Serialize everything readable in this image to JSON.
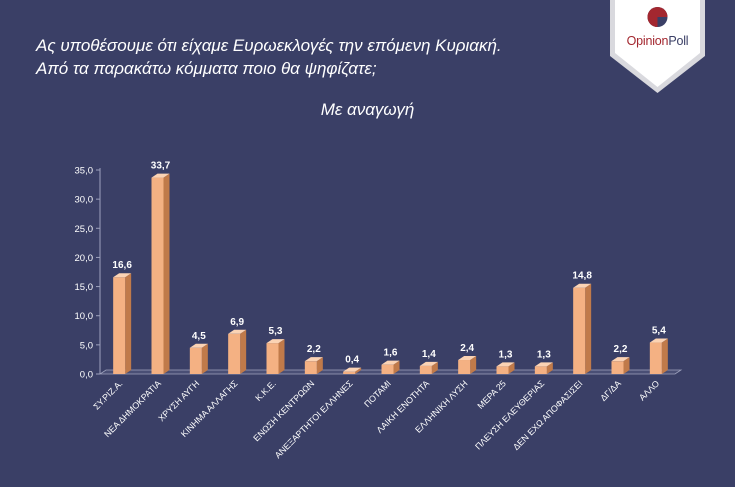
{
  "title_lines": [
    "Ας υποθέσουμε ότι είχαμε Ευρωεκλογές την επόμενη Κυριακή.",
    "Από τα παρακάτω κόμματα ποιο θα ψηφίζατε;"
  ],
  "subtitle": "Με αναγωγή",
  "logo": {
    "part1": "Opinion",
    "part2": "Poll"
  },
  "colors": {
    "background": "#3a3f66",
    "bar_front": "#f4b183",
    "bar_top": "#fbd3b4",
    "bar_side": "#c07a4a",
    "logo_red": "#a3272f",
    "logo_navy": "#3a3f66"
  },
  "chart_data": {
    "type": "bar",
    "categories": [
      "ΣΥ.ΡΙΖ.Α.",
      "ΝΕΑ ΔΗΜΟΚΡΑΤΙΑ",
      "ΧΡΥΣΗ ΑΥΓΗ",
      "ΚΙΝΗΜΑ ΑΛΛΑΓΗΣ",
      "Κ.Κ.Ε.",
      "ΕΝΩΣΗ ΚΕΝΤΡΩΩΝ",
      "ΑΝΕΞΑΡΤΗΤΟΙ ΕΛΛΗΝΕΣ",
      "ΠΟΤΑΜΙ",
      "ΛΑΙΚΗ ΕΝΟΤΗΤΑ",
      "ΕΛΛΗΝΙΚΗ ΛΥΣΗ",
      "ΜΕΡΑ 25",
      "ΠΛΕΥΣΗ ΕΛΕΥΘΕΡΙΑΣ",
      "ΔΕΝ ΕΧΩ ΑΠΟΦΑΣΙΣΕΙ",
      "ΔΓ/ΔΑ",
      "ΑΛΛΟ"
    ],
    "values": [
      16.6,
      33.7,
      4.5,
      6.9,
      5.3,
      2.2,
      0.4,
      1.6,
      1.4,
      2.4,
      1.3,
      1.3,
      14.8,
      2.2,
      5.4
    ],
    "value_labels": [
      "16,6",
      "33,7",
      "4,5",
      "6,9",
      "5,3",
      "2,2",
      "0,4",
      "1,6",
      "1,4",
      "2,4",
      "1,3",
      "1,3",
      "14,8",
      "2,2",
      "5,4"
    ],
    "y_ticks": [
      0,
      5,
      10,
      15,
      20,
      25,
      30,
      35
    ],
    "y_tick_labels": [
      "0,0",
      "5,0",
      "10,0",
      "15,0",
      "20,0",
      "25,0",
      "30,0",
      "35,0"
    ],
    "ylim": [
      0,
      35
    ],
    "grid": false,
    "three_d": true
  }
}
